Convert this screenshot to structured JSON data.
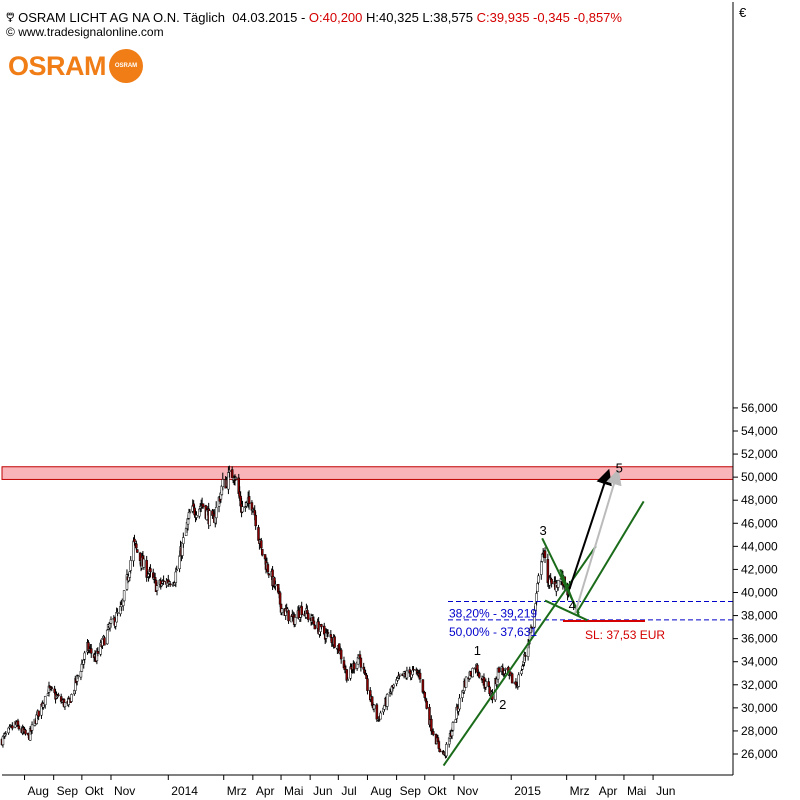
{
  "header": {
    "icon": "chart-symbol-icon",
    "instrument": "OSRAM LICHT AG NA O.N.",
    "period": "Täglich",
    "date": "04.03.2015",
    "open": "O:40,200",
    "high": "H:40,325",
    "low": "L:38,575",
    "close": "C:39,935",
    "change": "-0,345",
    "change_pct": "-0,857%",
    "source": "www.tradesignalonline.com",
    "currency": "€",
    "colors": {
      "negative": "#d40000",
      "text": "#000000"
    }
  },
  "logo": {
    "text": "OSRAM",
    "bulb_text": "OSRAM",
    "color": "#f07d16"
  },
  "chart_data": {
    "type": "candlestick",
    "title": "",
    "ylim": [
      25000,
      57500
    ],
    "y_ticks": [
      "26,000",
      "28,000",
      "30,000",
      "32,000",
      "34,000",
      "36,000",
      "38,000",
      "40,000",
      "42,000",
      "44,000",
      "46,000",
      "48,000",
      "50,000",
      "52,000",
      "54,000",
      "56,000"
    ],
    "x_ticks": [
      "Aug",
      "Sep",
      "Okt",
      "Nov",
      "2014",
      "Mrz",
      "Apr",
      "Mai",
      "Jun",
      "Jul",
      "Aug",
      "Sep",
      "Okt",
      "Nov",
      "2015",
      "Mrz",
      "Apr",
      "Mai",
      "Jun"
    ],
    "x_range": [
      "2013-07-08",
      "2015-06-30"
    ],
    "price_path": [
      [
        "2013-07-08",
        27200
      ],
      [
        "2013-07-22",
        28600
      ],
      [
        "2013-08-05",
        27400
      ],
      [
        "2013-08-26",
        31600
      ],
      [
        "2013-09-16",
        30100
      ],
      [
        "2013-10-07",
        35200
      ],
      [
        "2013-10-16",
        34300
      ],
      [
        "2013-10-30",
        36900
      ],
      [
        "2013-11-13",
        38700
      ],
      [
        "2013-11-25",
        44200
      ],
      [
        "2013-12-05",
        42400
      ],
      [
        "2013-12-20",
        40500
      ],
      [
        "2014-01-08",
        41300
      ],
      [
        "2014-01-24",
        46800
      ],
      [
        "2014-02-06",
        47700
      ],
      [
        "2014-02-17",
        46000
      ],
      [
        "2014-02-28",
        49300
      ],
      [
        "2014-03-12",
        50500
      ],
      [
        "2014-03-20",
        47300
      ],
      [
        "2014-04-01",
        47800
      ],
      [
        "2014-04-10",
        43600
      ],
      [
        "2014-04-24",
        40600
      ],
      [
        "2014-05-02",
        38600
      ],
      [
        "2014-05-14",
        37600
      ],
      [
        "2014-05-23",
        38600
      ],
      [
        "2014-06-12",
        36700
      ],
      [
        "2014-06-30",
        35600
      ],
      [
        "2014-07-11",
        32600
      ],
      [
        "2014-07-23",
        34600
      ],
      [
        "2014-08-04",
        30800
      ],
      [
        "2014-08-12",
        29000
      ],
      [
        "2014-08-27",
        31600
      ],
      [
        "2014-09-05",
        32600
      ],
      [
        "2014-09-17",
        33100
      ],
      [
        "2014-09-26",
        32800
      ],
      [
        "2014-10-07",
        28600
      ],
      [
        "2014-10-16",
        26600
      ],
      [
        "2014-10-22",
        25900
      ],
      [
        "2014-10-31",
        28400
      ],
      [
        "2014-11-12",
        32100
      ],
      [
        "2014-11-24",
        33700
      ],
      [
        "2014-12-04",
        32100
      ],
      [
        "2014-12-12",
        31000
      ],
      [
        "2014-12-19",
        33500
      ],
      [
        "2015-01-07",
        32000
      ],
      [
        "2015-01-16",
        34600
      ],
      [
        "2015-01-26",
        38300
      ],
      [
        "2015-02-03",
        43800
      ],
      [
        "2015-02-09",
        41300
      ],
      [
        "2015-02-13",
        40500
      ],
      [
        "2015-02-23",
        41200
      ],
      [
        "2015-03-04",
        39935
      ]
    ],
    "resistance_zone": {
      "y_low": 49800,
      "y_high": 50900,
      "color": "#f8b4b8"
    },
    "fibonacci": [
      {
        "label": "38,20% - 39,219",
        "value": 39219
      },
      {
        "label": "50,00% - 37,631",
        "value": 37631
      }
    ],
    "stop_loss": {
      "label": "SL: 37,53 EUR",
      "value": 37530
    },
    "wave_labels": [
      {
        "label": "1",
        "date": "2014-11-26",
        "value": 34600
      },
      {
        "label": "2",
        "date": "2014-12-23",
        "value": 29900
      },
      {
        "label": "3",
        "date": "2015-02-04",
        "value": 45000
      },
      {
        "label": "4",
        "date": "2015-03-07",
        "value": 38500
      },
      {
        "label": "5",
        "date": "2015-04-26",
        "value": 50400
      }
    ],
    "trendlines": [
      {
        "from": [
          "2014-10-21",
          25000
        ],
        "to": [
          "2015-04-01",
          44000
        ],
        "color": "#1a6b1a"
      },
      {
        "from": [
          "2015-03-12",
          38300
        ],
        "to": [
          "2015-05-22",
          47900
        ],
        "color": "#1a6b1a"
      },
      {
        "from": [
          "2015-02-03",
          44700
        ],
        "to": [
          "2015-03-14",
          38200
        ],
        "color": "#1a6b1a"
      },
      {
        "from": [
          "2015-02-06",
          39300
        ],
        "to": [
          "2015-03-23",
          37600
        ],
        "color": "#1a6b1a"
      },
      {
        "from": [
          "2015-02-22",
          42000
        ],
        "to": [
          "2015-03-14",
          38000
        ],
        "color": "#1a6b1a"
      }
    ],
    "projections": [
      {
        "from": [
          "2015-03-04",
          40300
        ],
        "to": [
          "2015-04-14",
          50400
        ],
        "color": "#000000"
      },
      {
        "from": [
          "2015-03-10",
          38200
        ],
        "to": [
          "2015-04-24",
          50400
        ],
        "color": "#bbbbbb"
      }
    ],
    "colors": {
      "up": "#ffffff",
      "down": "#8b0000",
      "wick": "#000000",
      "fib": "#0000cc",
      "stop": "#d40000"
    }
  }
}
